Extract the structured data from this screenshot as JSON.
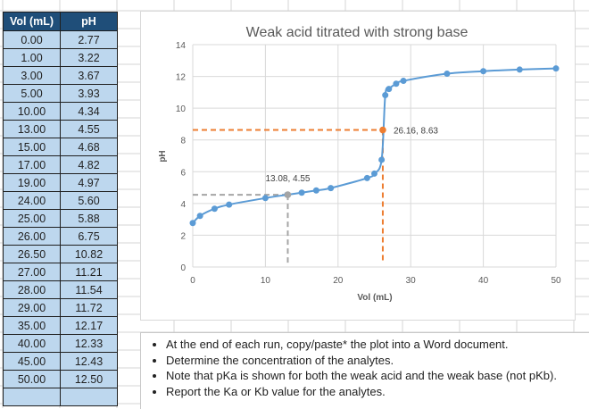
{
  "table": {
    "headers": [
      "Vol (mL)",
      "pH"
    ],
    "rows": [
      [
        "0.00",
        "2.77"
      ],
      [
        "1.00",
        "3.22"
      ],
      [
        "3.00",
        "3.67"
      ],
      [
        "5.00",
        "3.93"
      ],
      [
        "10.00",
        "4.34"
      ],
      [
        "13.00",
        "4.55"
      ],
      [
        "15.00",
        "4.68"
      ],
      [
        "17.00",
        "4.82"
      ],
      [
        "19.00",
        "4.97"
      ],
      [
        "24.00",
        "5.60"
      ],
      [
        "25.00",
        "5.88"
      ],
      [
        "26.00",
        "6.75"
      ],
      [
        "26.50",
        "10.82"
      ],
      [
        "27.00",
        "11.21"
      ],
      [
        "28.00",
        "11.54"
      ],
      [
        "29.00",
        "11.72"
      ],
      [
        "35.00",
        "12.17"
      ],
      [
        "40.00",
        "12.33"
      ],
      [
        "45.00",
        "12.43"
      ],
      [
        "50.00",
        "12.50"
      ]
    ]
  },
  "chart_data": {
    "type": "line",
    "title": "Weak acid titrated with strong base",
    "xlabel": "Vol (mL)",
    "ylabel": "pH",
    "xlim": [
      0,
      50
    ],
    "ylim": [
      0,
      14
    ],
    "x_ticks": [
      "0",
      "10",
      "20",
      "30",
      "40",
      "50"
    ],
    "y_ticks": [
      "0",
      "2",
      "4",
      "6",
      "8",
      "10",
      "12",
      "14"
    ],
    "grid": true,
    "series": [
      {
        "x": [
          0,
          1,
          3,
          5,
          10,
          13,
          15,
          17,
          19,
          24,
          25,
          26,
          26.5,
          27,
          28,
          29,
          35,
          40,
          45,
          50
        ],
        "y": [
          2.77,
          3.22,
          3.67,
          3.93,
          4.34,
          4.55,
          4.68,
          4.82,
          4.97,
          5.6,
          5.88,
          6.75,
          10.82,
          11.21,
          11.54,
          11.72,
          12.17,
          12.33,
          12.43,
          12.5
        ],
        "color": "#5b9bd5"
      }
    ],
    "annotations": [
      {
        "x": 13.08,
        "y": 4.55,
        "label": "13.08, 4.55",
        "color": "#a5a5a5"
      },
      {
        "x": 26.16,
        "y": 8.63,
        "label": "26.16, 8.63",
        "color": "#ed7d31"
      }
    ]
  },
  "notes": [
    "At the end of each run, copy/paste* the plot into a Word document.",
    "Determine the concentration of the analytes.",
    "Note that pKa is shown for both the weak acid and the weak base (not pKb).",
    "Report the Ka or Kb value for the analytes."
  ]
}
